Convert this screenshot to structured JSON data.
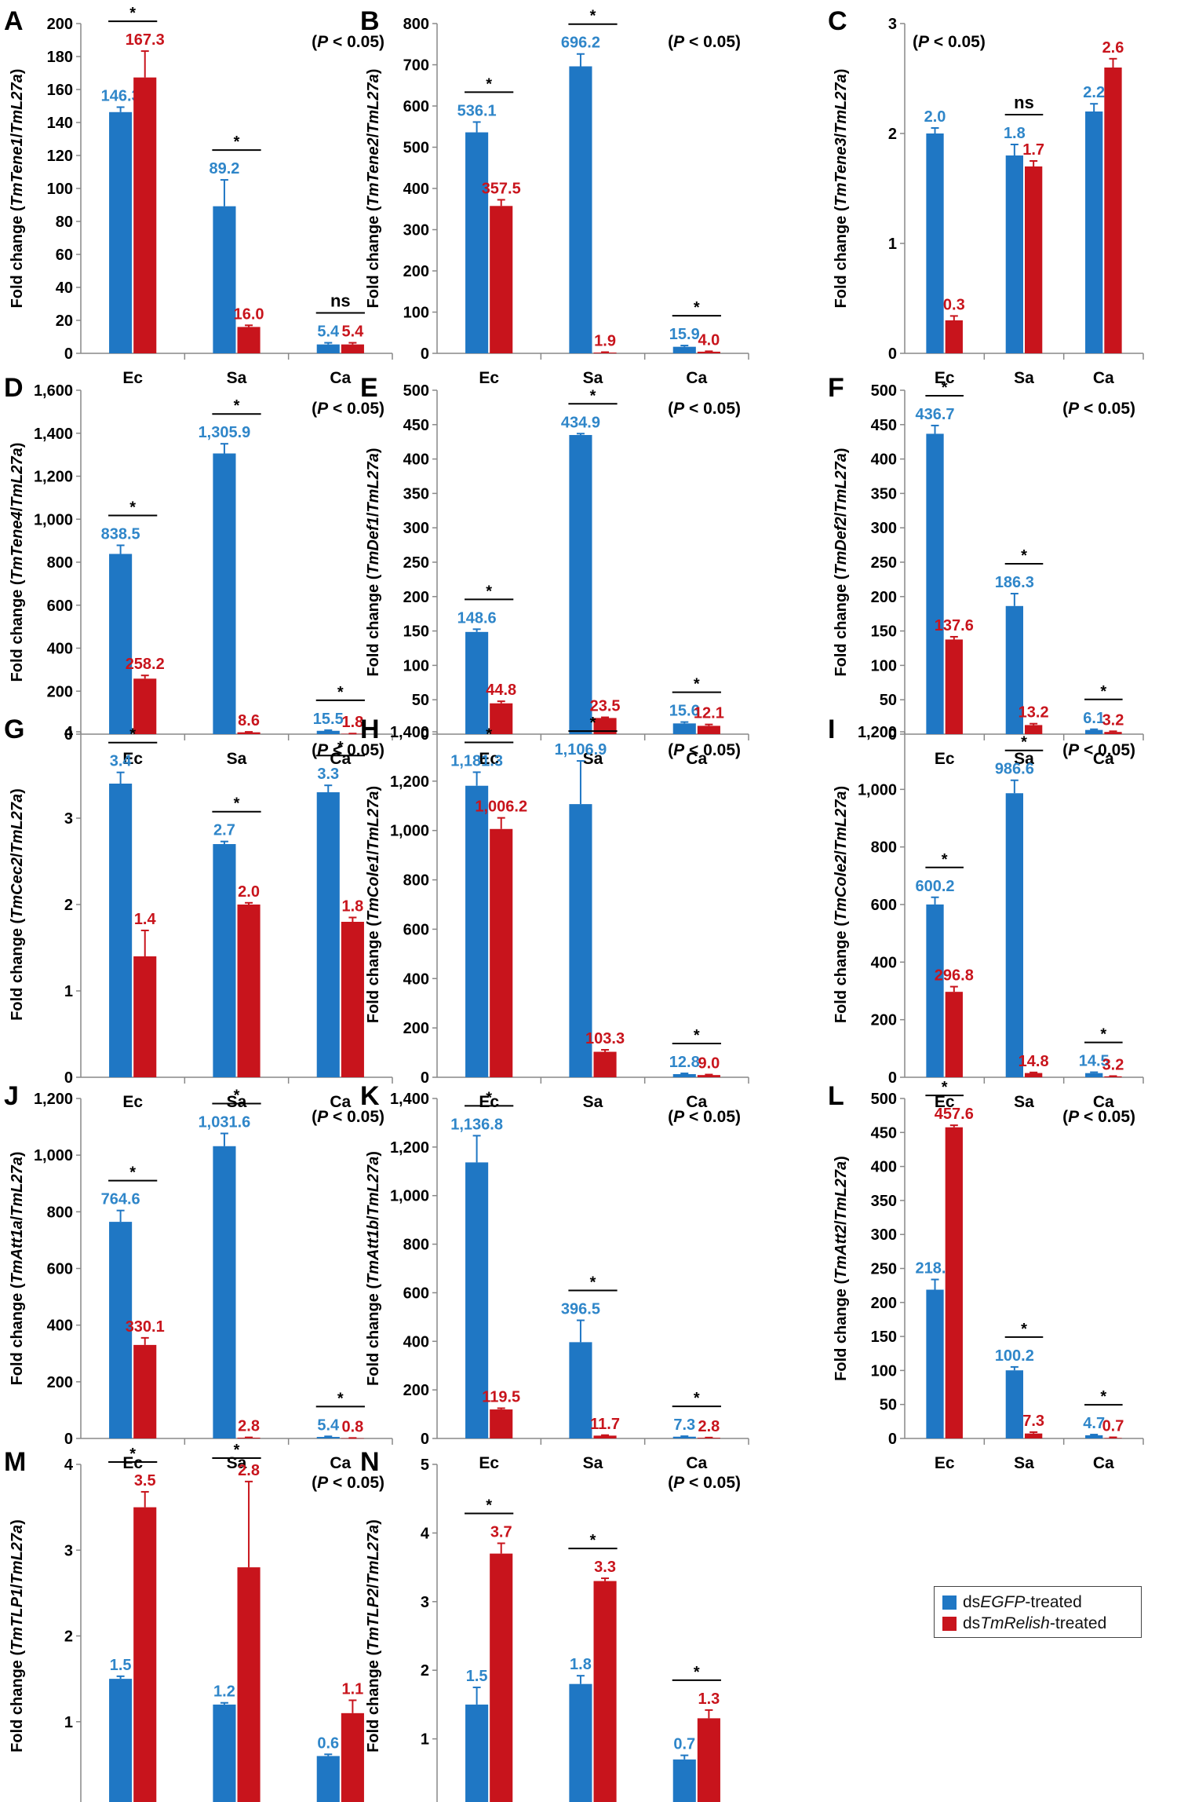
{
  "colors": {
    "control": "#1f77c4",
    "treated": "#c8141c",
    "control_label": "#2f86c9",
    "treated_label": "#c8141c"
  },
  "legend": {
    "control": {
      "prefix": "ds",
      "gene": "EGFP",
      "suffix": "-treated"
    },
    "treated": {
      "prefix": "ds",
      "gene": "TmRelish",
      "suffix": "-treated"
    }
  },
  "chart_data": [
    {
      "letter": "A",
      "type": "bar",
      "gene": "TmTene1",
      "ylabel": "Fold change (TmTene1/TmL27a)",
      "ylim": [
        0,
        200
      ],
      "yticks": [
        0,
        20,
        40,
        60,
        80,
        100,
        120,
        140,
        160,
        180,
        200
      ],
      "categories": [
        "Ec",
        "Sa",
        "Ca"
      ],
      "series": [
        {
          "name": "dsEGFP-treated",
          "values": [
            146.3,
            89.2,
            5.4
          ],
          "labels": [
            "146.3",
            "89.2",
            "5.4"
          ],
          "errors": [
            3,
            16,
            1
          ]
        },
        {
          "name": "dsTmRelish-treated",
          "values": [
            167.3,
            16.0,
            5.4
          ],
          "labels": [
            "167.3",
            "16.0",
            "5.4"
          ],
          "errors": [
            16,
            1,
            1
          ]
        }
      ],
      "significance": [
        "*",
        "*",
        "ns"
      ],
      "note": "(P < 0.05)",
      "note_pos": "right"
    },
    {
      "letter": "B",
      "type": "bar",
      "gene": "TmTene2",
      "ylabel": "Fold change (TmTene2/TmL27a)",
      "ylim": [
        0,
        800
      ],
      "yticks": [
        0,
        100,
        200,
        300,
        400,
        500,
        600,
        700,
        800
      ],
      "categories": [
        "Ec",
        "Sa",
        "Ca"
      ],
      "series": [
        {
          "name": "dsEGFP-treated",
          "values": [
            536.1,
            696.2,
            15.9
          ],
          "labels": [
            "536.1",
            "696.2",
            "15.9"
          ],
          "errors": [
            25,
            30,
            3
          ]
        },
        {
          "name": "dsTmRelish-treated",
          "values": [
            357.5,
            1.9,
            4.0
          ],
          "labels": [
            "357.5",
            "1.9",
            "4.0"
          ],
          "errors": [
            15,
            1,
            1
          ]
        }
      ],
      "significance": [
        "*",
        "*",
        "*"
      ],
      "note": "(P < 0.05)",
      "note_pos": "right"
    },
    {
      "letter": "C",
      "type": "bar",
      "gene": "TmTene3",
      "ylabel": "Fold change (TmTene3/TmL27a)",
      "ylim": [
        0,
        3
      ],
      "yticks": [
        0,
        1,
        2,
        3
      ],
      "categories": [
        "Ec",
        "Sa",
        "Ca"
      ],
      "series": [
        {
          "name": "dsEGFP-treated",
          "values": [
            2.0,
            1.8,
            2.2
          ],
          "labels": [
            "2.0",
            "1.8",
            "2.2"
          ],
          "errors": [
            0.05,
            0.1,
            0.07
          ]
        },
        {
          "name": "dsTmRelish-treated",
          "values": [
            0.3,
            1.7,
            2.6
          ],
          "labels": [
            "0.3",
            "1.7",
            "2.6"
          ],
          "errors": [
            0.04,
            0.05,
            0.08
          ]
        }
      ],
      "significance": [
        "",
        "ns",
        ""
      ],
      "note": "(P < 0.05)",
      "note_pos": "left"
    },
    {
      "letter": "D",
      "type": "bar",
      "gene": "TmTene4",
      "ylabel": "Fold change (TmTene4/TmL27a)",
      "ylim": [
        0,
        1600
      ],
      "yticks": [
        0,
        200,
        400,
        600,
        800,
        1000,
        1200,
        1400,
        1600
      ],
      "ytick_labels": [
        "0",
        "200",
        "400",
        "600",
        "800",
        "1,000",
        "1,200",
        "1,400",
        "1,600"
      ],
      "categories": [
        "Ec",
        "Sa",
        "Ca"
      ],
      "series": [
        {
          "name": "dsEGFP-treated",
          "values": [
            838.5,
            1305.9,
            15.5
          ],
          "labels": [
            "838.5",
            "1,305.9",
            "15.5"
          ],
          "errors": [
            40,
            45,
            3
          ]
        },
        {
          "name": "dsTmRelish-treated",
          "values": [
            258.2,
            8.6,
            1.8
          ],
          "labels": [
            "258.2",
            "8.6",
            "1.8"
          ],
          "errors": [
            15,
            2,
            1
          ]
        }
      ],
      "significance": [
        "*",
        "*",
        "*"
      ],
      "note": "(P < 0.05)",
      "note_pos": "right"
    },
    {
      "letter": "E",
      "type": "bar",
      "gene": "TmDef1",
      "ylabel": "Fold change (TmDef1/TmL27a)",
      "ylim": [
        0,
        500
      ],
      "yticks": [
        0,
        50,
        100,
        150,
        200,
        250,
        300,
        350,
        400,
        450,
        500
      ],
      "categories": [
        "Ec",
        "Sa",
        "Ca"
      ],
      "series": [
        {
          "name": "dsEGFP-treated",
          "values": [
            148.6,
            434.9,
            15.6
          ],
          "labels": [
            "148.6",
            "434.9",
            "15.6"
          ],
          "errors": [
            4,
            2,
            2
          ]
        },
        {
          "name": "dsTmRelish-treated",
          "values": [
            44.8,
            23.5,
            12.1
          ],
          "labels": [
            "44.8",
            "23.5",
            "12.1"
          ],
          "errors": [
            3,
            1,
            2
          ]
        }
      ],
      "significance": [
        "*",
        "*",
        "*"
      ],
      "note": "(P < 0.05)",
      "note_pos": "right"
    },
    {
      "letter": "F",
      "type": "bar",
      "gene": "TmDef2",
      "ylabel": "Fold change (TmDef2/TmL27a)",
      "ylim": [
        0,
        500
      ],
      "yticks": [
        0,
        50,
        100,
        150,
        200,
        250,
        300,
        350,
        400,
        450,
        500
      ],
      "categories": [
        "Ec",
        "Sa",
        "Ca"
      ],
      "series": [
        {
          "name": "dsEGFP-treated",
          "values": [
            436.7,
            186.3,
            6.1
          ],
          "labels": [
            "436.7",
            "186.3",
            "6.1"
          ],
          "errors": [
            12,
            18,
            1
          ]
        },
        {
          "name": "dsTmRelish-treated",
          "values": [
            137.6,
            13.2,
            3.2
          ],
          "labels": [
            "137.6",
            "13.2",
            "3.2"
          ],
          "errors": [
            4,
            2,
            1
          ]
        }
      ],
      "significance": [
        "*",
        "*",
        "*"
      ],
      "note": "(P < 0.05)",
      "note_pos": "right"
    },
    {
      "letter": "G",
      "type": "bar",
      "gene": "TmCec2",
      "ylabel": "Fold change (TmCec2/TmL27a)",
      "ylim": [
        0,
        4
      ],
      "yticks": [
        0,
        1,
        2,
        3,
        4
      ],
      "categories": [
        "Ec",
        "Sa",
        "Ca"
      ],
      "series": [
        {
          "name": "dsEGFP-treated",
          "values": [
            3.4,
            2.7,
            3.3
          ],
          "labels": [
            "3.4",
            "2.7",
            "3.3"
          ],
          "errors": [
            0.13,
            0.03,
            0.08
          ]
        },
        {
          "name": "dsTmRelish-treated",
          "values": [
            1.4,
            2.0,
            1.8
          ],
          "labels": [
            "1.4",
            "2.0",
            "1.8"
          ],
          "errors": [
            0.3,
            0.02,
            0.05
          ]
        }
      ],
      "significance": [
        "*",
        "*",
        "*"
      ],
      "note": "(P < 0.05)",
      "note_pos": "right"
    },
    {
      "letter": "H",
      "type": "bar",
      "gene": "TmCole1",
      "ylabel": "Fold change (TmCole1/TmL27a)",
      "ylim": [
        0,
        1400
      ],
      "yticks": [
        0,
        200,
        400,
        600,
        800,
        1000,
        1200,
        1400
      ],
      "ytick_labels": [
        "0",
        "200",
        "400",
        "600",
        "800",
        "1,000",
        "1,200",
        "1,400"
      ],
      "categories": [
        "Ec",
        "Sa",
        "Ca"
      ],
      "series": [
        {
          "name": "dsEGFP-treated",
          "values": [
            1181.3,
            1106.9,
            12.8
          ],
          "labels": [
            "1,181.3",
            "1,106.9",
            "12.8"
          ],
          "errors": [
            55,
            175,
            3
          ]
        },
        {
          "name": "dsTmRelish-treated",
          "values": [
            1006.2,
            103.3,
            9.0
          ],
          "labels": [
            "1,006.2",
            "103.3",
            "9.0"
          ],
          "errors": [
            45,
            8,
            2
          ]
        }
      ],
      "significance": [
        "*",
        "*",
        "*"
      ],
      "note": "(P < 0.05)",
      "note_pos": "right"
    },
    {
      "letter": "I",
      "type": "bar",
      "gene": "TmCole2",
      "ylabel": "Fold change (TmCole2/TmL27a)",
      "ylim": [
        0,
        1200
      ],
      "yticks": [
        0,
        200,
        400,
        600,
        800,
        1000,
        1200
      ],
      "ytick_labels": [
        "0",
        "200",
        "400",
        "600",
        "800",
        "1,000",
        "1,200"
      ],
      "categories": [
        "Ec",
        "Sa",
        "Ca"
      ],
      "series": [
        {
          "name": "dsEGFP-treated",
          "values": [
            600.2,
            986.6,
            14.5
          ],
          "labels": [
            "600.2",
            "986.6",
            "14.5"
          ],
          "errors": [
            25,
            45,
            3
          ]
        },
        {
          "name": "dsTmRelish-treated",
          "values": [
            296.8,
            14.8,
            3.2
          ],
          "labels": [
            "296.8",
            "14.8",
            "3.2"
          ],
          "errors": [
            18,
            2,
            1
          ]
        }
      ],
      "significance": [
        "*",
        "*",
        "*"
      ],
      "note": "(P < 0.05)",
      "note_pos": "right"
    },
    {
      "letter": "J",
      "type": "bar",
      "gene": "TmAtt1a",
      "ylabel": "Fold change (TmAtt1a/TmL27a)",
      "ylim": [
        0,
        1200
      ],
      "yticks": [
        0,
        200,
        400,
        600,
        800,
        1000,
        1200
      ],
      "ytick_labels": [
        "0",
        "200",
        "400",
        "600",
        "800",
        "1,000",
        "1,200"
      ],
      "categories": [
        "Ec",
        "Sa",
        "Ca"
      ],
      "series": [
        {
          "name": "dsEGFP-treated",
          "values": [
            764.6,
            1031.6,
            5.4
          ],
          "labels": [
            "764.6",
            "1,031.6",
            "5.4"
          ],
          "errors": [
            40,
            45,
            2
          ]
        },
        {
          "name": "dsTmRelish-treated",
          "values": [
            330.1,
            2.8,
            0.8
          ],
          "labels": [
            "330.1",
            "2.8",
            "0.8"
          ],
          "errors": [
            25,
            1,
            1
          ]
        }
      ],
      "significance": [
        "*",
        "*",
        "*"
      ],
      "note": "(P < 0.05)",
      "note_pos": "right"
    },
    {
      "letter": "K",
      "type": "bar",
      "gene": "TmAtt1b",
      "ylabel": "Fold change (TmAtt1b/TmL27a)",
      "ylim": [
        0,
        1400
      ],
      "yticks": [
        0,
        200,
        400,
        600,
        800,
        1000,
        1200,
        1400
      ],
      "ytick_labels": [
        "0",
        "200",
        "400",
        "600",
        "800",
        "1,000",
        "1,200",
        "1,400"
      ],
      "categories": [
        "Ec",
        "Sa",
        "Ca"
      ],
      "series": [
        {
          "name": "dsEGFP-treated",
          "values": [
            1136.8,
            396.5,
            7.3
          ],
          "labels": [
            "1,136.8",
            "396.5",
            "7.3"
          ],
          "errors": [
            110,
            90,
            2
          ]
        },
        {
          "name": "dsTmRelish-treated",
          "values": [
            119.5,
            11.7,
            2.8
          ],
          "labels": [
            "119.5",
            "11.7",
            "2.8"
          ],
          "errors": [
            5,
            2,
            1
          ]
        }
      ],
      "significance": [
        "*",
        "*",
        "*"
      ],
      "note": "(P < 0.05)",
      "note_pos": "right"
    },
    {
      "letter": "L",
      "type": "bar",
      "gene": "TmAtt2",
      "ylabel": "Fold change (TmAtt2/TmL27a)",
      "ylim": [
        0,
        500
      ],
      "yticks": [
        0,
        50,
        100,
        150,
        200,
        250,
        300,
        350,
        400,
        450,
        500
      ],
      "categories": [
        "Ec",
        "Sa",
        "Ca"
      ],
      "series": [
        {
          "name": "dsEGFP-treated",
          "values": [
            218.8,
            100.2,
            4.7
          ],
          "labels": [
            "218.8",
            "100.2",
            "4.7"
          ],
          "errors": [
            15,
            5,
            1
          ]
        },
        {
          "name": "dsTmRelish-treated",
          "values": [
            457.6,
            7.3,
            0.7
          ],
          "labels": [
            "457.6",
            "7.3",
            "0.7"
          ],
          "errors": [
            3,
            2,
            1
          ]
        }
      ],
      "significance": [
        "*",
        "*",
        "*"
      ],
      "note": "(P < 0.05)",
      "note_pos": "right"
    },
    {
      "letter": "M",
      "type": "bar",
      "gene": "TmTLP1",
      "ylabel": "Fold change (TmTLP1/TmL27a)",
      "ylim": [
        0,
        4
      ],
      "yticks": [
        0,
        1,
        2,
        3,
        4
      ],
      "categories": [
        "Ec",
        "Sa",
        "Ca"
      ],
      "series": [
        {
          "name": "dsEGFP-treated",
          "values": [
            1.5,
            1.2,
            0.6
          ],
          "labels": [
            "1.5",
            "1.2",
            "0.6"
          ],
          "errors": [
            0.03,
            0.02,
            0.02
          ]
        },
        {
          "name": "dsTmRelish-treated",
          "values": [
            3.5,
            2.8,
            1.1
          ],
          "labels": [
            "3.5",
            "2.8",
            "1.1"
          ],
          "errors": [
            0.18,
            1.0,
            0.15
          ]
        }
      ],
      "significance": [
        "*",
        "*",
        ""
      ],
      "note": "(P < 0.05)",
      "note_pos": "right"
    },
    {
      "letter": "N",
      "type": "bar",
      "gene": "TmTLP2",
      "ylabel": "Fold change (TmTLP2/TmL27a)",
      "ylim": [
        0,
        5
      ],
      "yticks": [
        0,
        1,
        2,
        3,
        4,
        5
      ],
      "categories": [
        "Ec",
        "Sa",
        "Ca"
      ],
      "series": [
        {
          "name": "dsEGFP-treated",
          "values": [
            1.5,
            1.8,
            0.7
          ],
          "labels": [
            "1.5",
            "1.8",
            "0.7"
          ],
          "errors": [
            0.25,
            0.12,
            0.06
          ]
        },
        {
          "name": "dsTmRelish-treated",
          "values": [
            3.7,
            3.3,
            1.3
          ],
          "labels": [
            "3.7",
            "3.3",
            "1.3"
          ],
          "errors": [
            0.15,
            0.04,
            0.12
          ]
        }
      ],
      "significance": [
        "*",
        "*",
        "*"
      ],
      "note": "(P < 0.05)",
      "note_pos": "right"
    }
  ]
}
